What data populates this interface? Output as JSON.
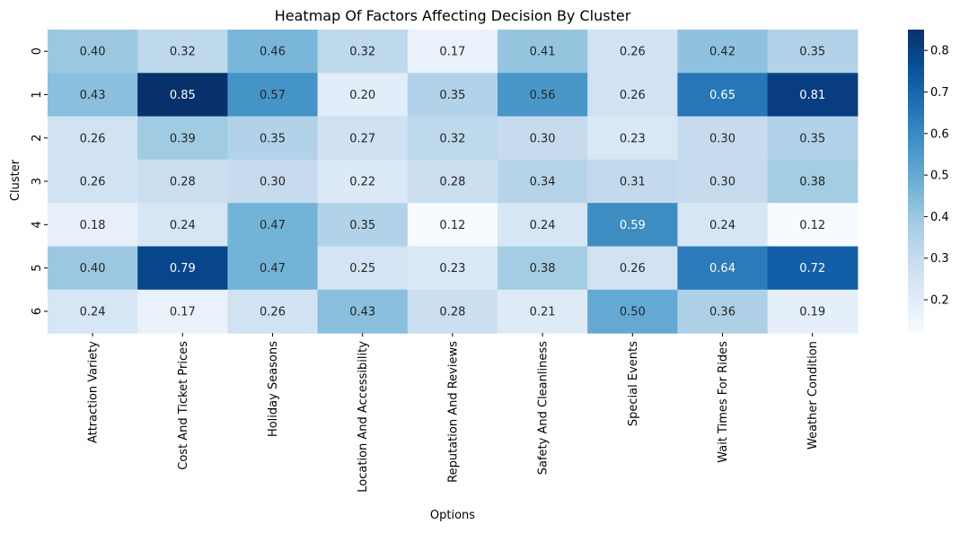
{
  "chart_data": {
    "type": "heatmap",
    "title": "Heatmap Of Factors Affecting Decision By Cluster",
    "xlabel": "Options",
    "ylabel": "Cluster",
    "x_categories": [
      "Attraction Variety",
      "Cost And Ticket Prices",
      "Holiday Seasons",
      "Location And Accessibility",
      "Reputation And Reviews",
      "Safety And Cleanliness",
      "Special Events",
      "Wait Times For Rides",
      "Weather Condition"
    ],
    "y_categories": [
      "0",
      "1",
      "2",
      "3",
      "4",
      "5",
      "6"
    ],
    "values": [
      [
        0.4,
        0.32,
        0.46,
        0.32,
        0.17,
        0.41,
        0.26,
        0.42,
        0.35
      ],
      [
        0.43,
        0.85,
        0.57,
        0.2,
        0.35,
        0.56,
        0.26,
        0.65,
        0.81
      ],
      [
        0.26,
        0.39,
        0.35,
        0.27,
        0.32,
        0.3,
        0.23,
        0.3,
        0.35
      ],
      [
        0.26,
        0.28,
        0.3,
        0.22,
        0.28,
        0.34,
        0.31,
        0.3,
        0.38
      ],
      [
        0.18,
        0.24,
        0.47,
        0.35,
        0.12,
        0.24,
        0.59,
        0.24,
        0.12
      ],
      [
        0.4,
        0.79,
        0.47,
        0.25,
        0.23,
        0.38,
        0.26,
        0.64,
        0.72
      ],
      [
        0.24,
        0.17,
        0.26,
        0.43,
        0.28,
        0.21,
        0.5,
        0.36,
        0.19
      ]
    ],
    "annotation_format": "0.00",
    "colormap": "Blues",
    "color_range": [
      0.12,
      0.85
    ],
    "colorbar_ticks": [
      0.2,
      0.3,
      0.4,
      0.5,
      0.6,
      0.7,
      0.8
    ],
    "grid": false
  }
}
